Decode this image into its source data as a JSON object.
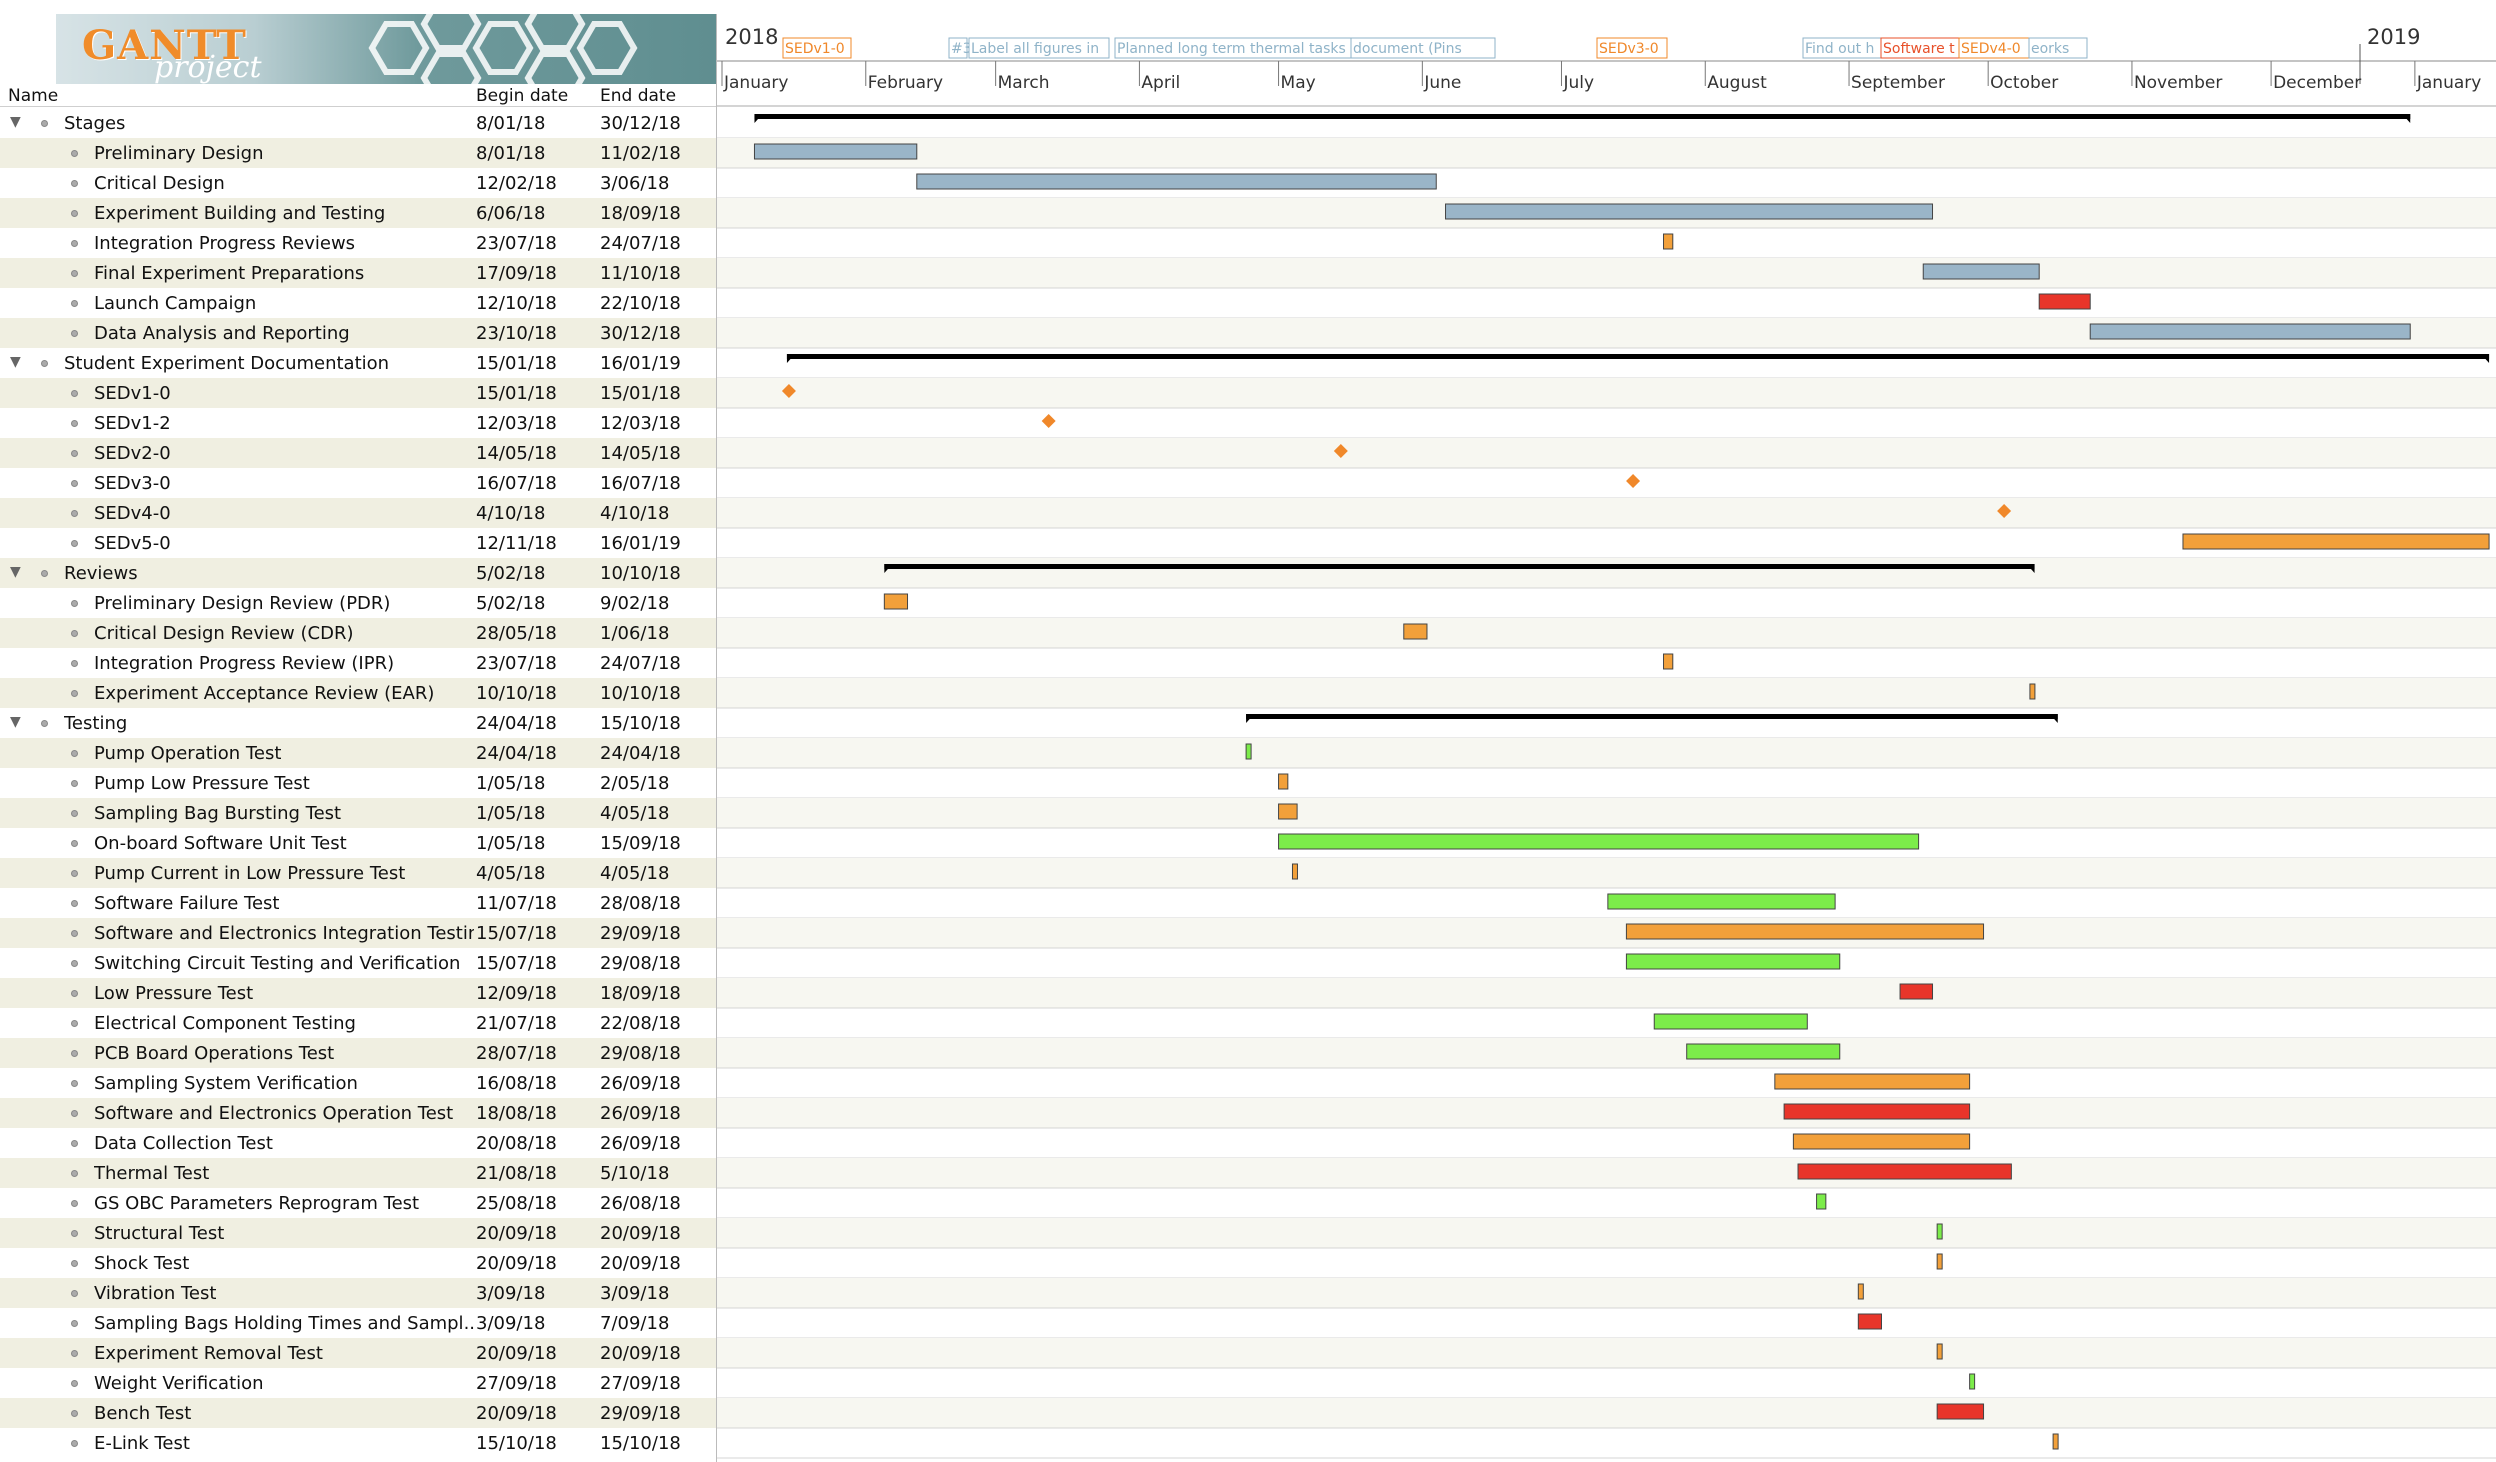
{
  "logo": {
    "gantt": "GANTT",
    "project": "project"
  },
  "columns": {
    "name": "Name",
    "begin": "Begin date",
    "end": "End date"
  },
  "timeline": {
    "year_start": "2018",
    "year_end": "2019",
    "months": [
      "January",
      "February",
      "March",
      "April",
      "May",
      "June",
      "July",
      "August",
      "September",
      "October",
      "November",
      "December",
      "January"
    ],
    "milestone_labels": [
      {
        "text": "SEDv1-0",
        "color": "#f0882a"
      },
      {
        "text": "#3",
        "color": "#8fb3c8"
      },
      {
        "text": "Label all figures in",
        "color": "#8fb3c8"
      },
      {
        "text": "Planned long term thermal tasks",
        "color": "#8fb3c8"
      },
      {
        "text": "document (Pins",
        "color": "#8fb3c8"
      },
      {
        "text": "SEDv3-0",
        "color": "#f0882a"
      },
      {
        "text": "Find out h",
        "color": "#8fb3c8"
      },
      {
        "text": "Software t",
        "color": "#e8512a"
      },
      {
        "text": "SEDv4-0",
        "color": "#f0882a"
      },
      {
        "text": "eorks",
        "color": "#8fb3c8"
      }
    ]
  },
  "colors": {
    "blue": "#9ab5c8",
    "orange": "#f2a03a",
    "red": "#e8352a",
    "green": "#7cec4a",
    "milestone": "#f0882a",
    "summary": "#000000"
  },
  "chart_data": {
    "type": "gantt",
    "x_range": [
      "2018-01-01",
      "2019-01-31"
    ],
    "tasks": [
      {
        "name": "Stages",
        "begin": "8/01/18",
        "end": "30/12/18",
        "kind": "summary",
        "level": 0
      },
      {
        "name": "Preliminary Design",
        "begin": "8/01/18",
        "end": "11/02/18",
        "kind": "blue",
        "level": 1
      },
      {
        "name": "Critical Design",
        "begin": "12/02/18",
        "end": "3/06/18",
        "kind": "blue",
        "level": 1
      },
      {
        "name": "Experiment Building and Testing",
        "begin": "6/06/18",
        "end": "18/09/18",
        "kind": "blue",
        "level": 1
      },
      {
        "name": "Integration Progress Reviews",
        "begin": "23/07/18",
        "end": "24/07/18",
        "kind": "orange",
        "level": 1
      },
      {
        "name": "Final Experiment Preparations",
        "begin": "17/09/18",
        "end": "11/10/18",
        "kind": "blue",
        "level": 1
      },
      {
        "name": "Launch Campaign",
        "begin": "12/10/18",
        "end": "22/10/18",
        "kind": "red",
        "level": 1
      },
      {
        "name": "Data Analysis and Reporting",
        "begin": "23/10/18",
        "end": "30/12/18",
        "kind": "blue",
        "level": 1
      },
      {
        "name": "Student Experiment Documentation",
        "begin": "15/01/18",
        "end": "16/01/19",
        "kind": "summary",
        "level": 0
      },
      {
        "name": "SEDv1-0",
        "begin": "15/01/18",
        "end": "15/01/18",
        "kind": "milestone",
        "level": 1
      },
      {
        "name": "SEDv1-2",
        "begin": "12/03/18",
        "end": "12/03/18",
        "kind": "milestone",
        "level": 1
      },
      {
        "name": "SEDv2-0",
        "begin": "14/05/18",
        "end": "14/05/18",
        "kind": "milestone",
        "level": 1
      },
      {
        "name": "SEDv3-0",
        "begin": "16/07/18",
        "end": "16/07/18",
        "kind": "milestone",
        "level": 1
      },
      {
        "name": "SEDv4-0",
        "begin": "4/10/18",
        "end": "4/10/18",
        "kind": "milestone",
        "level": 1
      },
      {
        "name": "SEDv5-0",
        "begin": "12/11/18",
        "end": "16/01/19",
        "kind": "orange",
        "level": 1
      },
      {
        "name": "Reviews",
        "begin": "5/02/18",
        "end": "10/10/18",
        "kind": "summary",
        "level": 0
      },
      {
        "name": "Preliminary Design Review (PDR)",
        "begin": "5/02/18",
        "end": "9/02/18",
        "kind": "orange",
        "level": 1
      },
      {
        "name": "Critical Design Review (CDR)",
        "begin": "28/05/18",
        "end": "1/06/18",
        "kind": "orange",
        "level": 1
      },
      {
        "name": "Integration Progress Review (IPR)",
        "begin": "23/07/18",
        "end": "24/07/18",
        "kind": "orange",
        "level": 1
      },
      {
        "name": "Experiment Acceptance Review (EAR)",
        "begin": "10/10/18",
        "end": "10/10/18",
        "kind": "orange",
        "level": 1
      },
      {
        "name": "Testing",
        "begin": "24/04/18",
        "end": "15/10/18",
        "kind": "summary",
        "level": 0
      },
      {
        "name": "Pump Operation Test",
        "begin": "24/04/18",
        "end": "24/04/18",
        "kind": "green",
        "level": 1
      },
      {
        "name": "Pump Low Pressure Test",
        "begin": "1/05/18",
        "end": "2/05/18",
        "kind": "orange",
        "level": 1
      },
      {
        "name": "Sampling Bag Bursting Test",
        "begin": "1/05/18",
        "end": "4/05/18",
        "kind": "orange",
        "level": 1
      },
      {
        "name": "On-board Software Unit Test",
        "begin": "1/05/18",
        "end": "15/09/18",
        "kind": "green",
        "level": 1
      },
      {
        "name": "Pump Current in Low Pressure Test",
        "begin": "4/05/18",
        "end": "4/05/18",
        "kind": "orange",
        "level": 1
      },
      {
        "name": "Software Failure Test",
        "begin": "11/07/18",
        "end": "28/08/18",
        "kind": "green",
        "level": 1
      },
      {
        "name": "Software and Electronics Integration Testing",
        "begin": "15/07/18",
        "end": "29/09/18",
        "kind": "orange",
        "level": 1
      },
      {
        "name": "Switching Circuit Testing and Verification",
        "begin": "15/07/18",
        "end": "29/08/18",
        "kind": "green",
        "level": 1
      },
      {
        "name": "Low Pressure Test",
        "begin": "12/09/18",
        "end": "18/09/18",
        "kind": "red",
        "level": 1
      },
      {
        "name": "Electrical Component Testing",
        "begin": "21/07/18",
        "end": "22/08/18",
        "kind": "green",
        "level": 1
      },
      {
        "name": "PCB Board Operations Test",
        "begin": "28/07/18",
        "end": "29/08/18",
        "kind": "green",
        "level": 1
      },
      {
        "name": "Sampling System Verification",
        "begin": "16/08/18",
        "end": "26/09/18",
        "kind": "orange",
        "level": 1
      },
      {
        "name": "Software and Electronics Operation Test",
        "begin": "18/08/18",
        "end": "26/09/18",
        "kind": "red",
        "level": 1
      },
      {
        "name": "Data Collection Test",
        "begin": "20/08/18",
        "end": "26/09/18",
        "kind": "orange",
        "level": 1
      },
      {
        "name": "Thermal Test",
        "begin": "21/08/18",
        "end": "5/10/18",
        "kind": "red",
        "level": 1
      },
      {
        "name": "GS OBC Parameters Reprogram Test",
        "begin": "25/08/18",
        "end": "26/08/18",
        "kind": "green",
        "level": 1
      },
      {
        "name": "Structural Test",
        "begin": "20/09/18",
        "end": "20/09/18",
        "kind": "green",
        "level": 1
      },
      {
        "name": "Shock Test",
        "begin": "20/09/18",
        "end": "20/09/18",
        "kind": "orange",
        "level": 1
      },
      {
        "name": "Vibration Test",
        "begin": "3/09/18",
        "end": "3/09/18",
        "kind": "orange",
        "level": 1
      },
      {
        "name": "Sampling Bags Holding Times and Sampl...",
        "begin": "3/09/18",
        "end": "7/09/18",
        "kind": "red",
        "level": 1
      },
      {
        "name": "Experiment Removal Test",
        "begin": "20/09/18",
        "end": "20/09/18",
        "kind": "orange",
        "level": 1
      },
      {
        "name": "Weight Verification",
        "begin": "27/09/18",
        "end": "27/09/18",
        "kind": "green",
        "level": 1
      },
      {
        "name": "Bench Test",
        "begin": "20/09/18",
        "end": "29/09/18",
        "kind": "red",
        "level": 1
      },
      {
        "name": "E-Link Test",
        "begin": "15/10/18",
        "end": "15/10/18",
        "kind": "orange",
        "level": 1
      }
    ]
  }
}
